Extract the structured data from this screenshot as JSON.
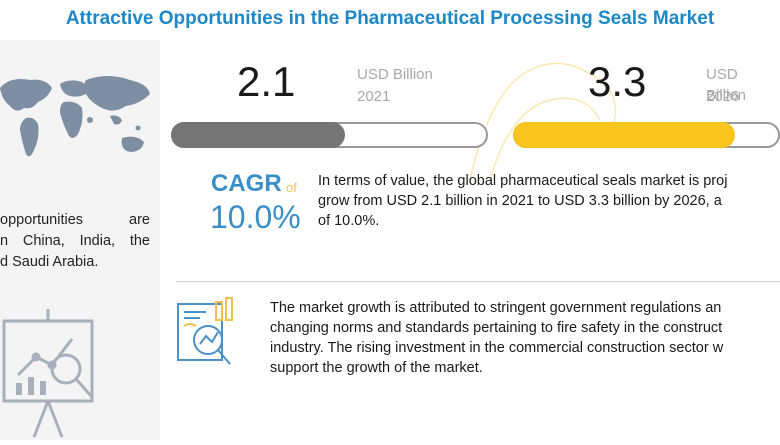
{
  "header": {
    "title": "Attractive Opportunities in the Pharmaceutical Processing Seals Market"
  },
  "left_panel": {
    "opportunity_lines": [
      "opportunities are",
      "n China, India, the",
      "d Saudi Arabia."
    ]
  },
  "market_size": {
    "start": {
      "value": "2.1",
      "unit": "USD Billion",
      "year": "2021",
      "bar_fraction": 0.55
    },
    "end": {
      "value": "3.3",
      "unit": "USD Billion",
      "year": "2026",
      "bar_fraction": 0.83
    }
  },
  "cagr": {
    "label": "CAGR",
    "of": "of",
    "value": "10.0%",
    "description_lines": [
      "In terms of value, the global pharmaceutical seals market is proj",
      "grow from  USD 2.1 billion in 2021 to USD 3.3 billion by 2026, a",
      "of 10.0%."
    ]
  },
  "growth": {
    "description_lines": [
      "The market growth is attributed to stringent government regulations an",
      "changing norms and standards pertaining to fire safety in the construct",
      "industry. The rising investment in the commercial construction sector w",
      "support the growth of the market."
    ]
  },
  "colors": {
    "title": "#1e87c6",
    "accent_blue": "#3a8fc7",
    "bar_gray": "#757575",
    "bar_yellow": "#f7c51e",
    "panel": "#f4f4f5"
  }
}
